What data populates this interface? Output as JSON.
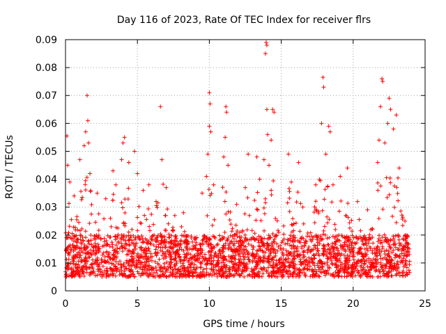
{
  "chart_data": {
    "type": "scatter",
    "title": "Day 116 of 2023, Rate Of TEC Index for receiver flrs",
    "xlabel": "GPS time / hours",
    "ylabel": "ROTI / TECUs",
    "xlim": [
      0,
      25
    ],
    "ylim": [
      0,
      0.09
    ],
    "x_ticks": [
      0,
      5,
      10,
      15,
      20,
      25
    ],
    "x_tick_labels": [
      "0",
      "5",
      "10",
      "15",
      "20",
      "25"
    ],
    "y_ticks": [
      0,
      0.01,
      0.02,
      0.03,
      0.04,
      0.05,
      0.06,
      0.07,
      0.08,
      0.09
    ],
    "y_tick_labels": [
      "0",
      "0.01",
      "0.02",
      "0.03",
      "0.04",
      "0.05",
      "0.06",
      "0.07",
      "0.08",
      "0.09"
    ],
    "grid": true,
    "marker": "+",
    "marker_color": "#ff0000",
    "x_range": [
      0,
      24
    ],
    "baseline_band": [
      0.005,
      0.02
    ],
    "series": [
      {
        "name": "ROTI",
        "points": [
          [
            0.1,
            0.0555
          ],
          [
            0.15,
            0.045
          ],
          [
            0.3,
            0.039
          ],
          [
            0.6,
            0.034
          ],
          [
            1.0,
            0.047
          ],
          [
            1.3,
            0.052
          ],
          [
            1.4,
            0.057
          ],
          [
            1.55,
            0.061
          ],
          [
            1.5,
            0.07
          ],
          [
            1.6,
            0.053
          ],
          [
            1.7,
            0.042
          ],
          [
            2.2,
            0.035
          ],
          [
            2.8,
            0.033
          ],
          [
            3.3,
            0.043
          ],
          [
            3.5,
            0.038
          ],
          [
            3.9,
            0.047
          ],
          [
            4.0,
            0.053
          ],
          [
            4.1,
            0.055
          ],
          [
            4.4,
            0.046
          ],
          [
            4.8,
            0.05
          ],
          [
            5.0,
            0.042
          ],
          [
            5.4,
            0.036
          ],
          [
            5.8,
            0.038
          ],
          [
            6.3,
            0.032
          ],
          [
            6.6,
            0.066
          ],
          [
            6.7,
            0.047
          ],
          [
            7.0,
            0.037
          ],
          [
            7.6,
            0.027
          ],
          [
            8.2,
            0.028
          ],
          [
            9.5,
            0.035
          ],
          [
            9.8,
            0.041
          ],
          [
            9.9,
            0.049
          ],
          [
            10.0,
            0.059
          ],
          [
            10.05,
            0.067
          ],
          [
            10.0,
            0.071
          ],
          [
            10.1,
            0.057
          ],
          [
            10.3,
            0.038
          ],
          [
            11.0,
            0.048
          ],
          [
            11.1,
            0.055
          ],
          [
            11.2,
            0.064
          ],
          [
            11.15,
            0.066
          ],
          [
            11.3,
            0.045
          ],
          [
            11.9,
            0.031
          ],
          [
            12.5,
            0.037
          ],
          [
            12.7,
            0.049
          ],
          [
            13.3,
            0.048
          ],
          [
            13.5,
            0.04
          ],
          [
            13.8,
            0.047
          ],
          [
            13.9,
            0.085
          ],
          [
            13.95,
            0.089
          ],
          [
            14.0,
            0.088
          ],
          [
            14.0,
            0.065
          ],
          [
            14.05,
            0.056
          ],
          [
            14.15,
            0.045
          ],
          [
            14.3,
            0.054
          ],
          [
            14.5,
            0.064
          ],
          [
            14.4,
            0.065
          ],
          [
            15.5,
            0.049
          ],
          [
            15.7,
            0.039
          ],
          [
            16.2,
            0.046
          ],
          [
            16.5,
            0.03
          ],
          [
            17.4,
            0.038
          ],
          [
            17.8,
            0.06
          ],
          [
            17.9,
            0.0765
          ],
          [
            17.95,
            0.073
          ],
          [
            18.1,
            0.049
          ],
          [
            18.3,
            0.059
          ],
          [
            18.4,
            0.057
          ],
          [
            18.6,
            0.038
          ],
          [
            19.1,
            0.041
          ],
          [
            19.6,
            0.044
          ],
          [
            20.3,
            0.032
          ],
          [
            21.0,
            0.029
          ],
          [
            21.7,
            0.046
          ],
          [
            21.8,
            0.054
          ],
          [
            21.9,
            0.066
          ],
          [
            22.0,
            0.076
          ],
          [
            22.05,
            0.075
          ],
          [
            22.2,
            0.053
          ],
          [
            22.4,
            0.06
          ],
          [
            22.5,
            0.069
          ],
          [
            22.6,
            0.065
          ],
          [
            22.8,
            0.058
          ],
          [
            23.0,
            0.063
          ],
          [
            23.2,
            0.044
          ],
          [
            23.6,
            0.025
          ],
          [
            23.9,
            0.013
          ]
        ]
      }
    ]
  }
}
